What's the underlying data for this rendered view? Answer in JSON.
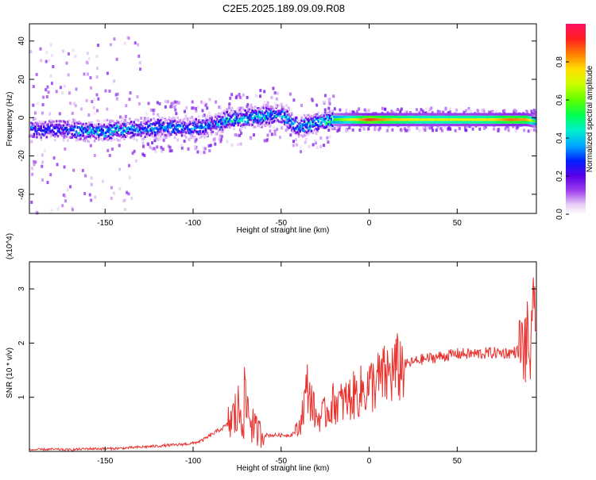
{
  "title": "C2E5.2025.189.09.09.R08",
  "chart_data": [
    {
      "type": "heatmap",
      "xlabel": "Height of straight line (km)",
      "ylabel": "Frequency (Hz)",
      "xlim": [
        -193,
        95
      ],
      "ylim": [
        -50,
        49
      ],
      "xticks": [
        -150,
        -100,
        -50,
        0,
        50
      ],
      "yticks": [
        -40,
        -20,
        0,
        20,
        40
      ],
      "colorbar": {
        "label": "Normalized spectral amplitude",
        "range": [
          0.0,
          1.0
        ],
        "ticks": [
          "0.0",
          "0.2",
          "0.4",
          "0.6",
          "0.8"
        ],
        "colormap": "rainbow (purple→blue→cyan→green→yellow→red)"
      },
      "ridge": {
        "x": [
          -190,
          -175,
          -160,
          -150,
          -140,
          -130,
          -120,
          -110,
          -100,
          -90,
          -80,
          -70,
          -60,
          -50,
          -40,
          -30,
          -20,
          -10,
          0,
          10,
          20,
          30,
          40,
          50,
          60,
          70,
          80,
          90,
          95
        ],
        "frequency": [
          -6,
          -6,
          -7,
          -7,
          -6,
          -6,
          -5,
          -5,
          -5,
          -4,
          -1,
          0,
          1,
          2,
          -5,
          -2,
          -1,
          -1,
          -1,
          -1,
          -1,
          -1,
          -1,
          -1,
          -1,
          -1,
          -1,
          -1,
          -2
        ],
        "amplitude": [
          0.3,
          0.3,
          0.4,
          0.45,
          0.4,
          0.35,
          0.4,
          0.35,
          0.35,
          0.35,
          0.45,
          0.4,
          0.45,
          0.4,
          0.4,
          0.45,
          0.55,
          0.7,
          0.9,
          0.8,
          0.75,
          0.7,
          0.7,
          0.72,
          0.72,
          0.75,
          0.85,
          0.8,
          0.5
        ]
      }
    },
    {
      "type": "line",
      "xlabel": "Height of straight line (km)",
      "ylabel": "SNR (10 * v/v)",
      "multiplier": "(x10^4)",
      "xlim": [
        -193,
        95
      ],
      "ylim": [
        0,
        3.5
      ],
      "xticks": [
        -150,
        -100,
        -50,
        0,
        50
      ],
      "yticks": [
        1,
        2,
        3
      ],
      "color": "#e8322e",
      "series": [
        {
          "x": [
            -193,
            -180,
            -170,
            -160,
            -150,
            -140,
            -130,
            -120,
            -110,
            -100,
            -95,
            -90,
            -85,
            -80,
            -75,
            -70,
            -65,
            -60,
            -55,
            -50,
            -45,
            -40,
            -35,
            -30,
            -25,
            -20,
            -15,
            -10,
            -5,
            0,
            5,
            10,
            15,
            20,
            25,
            30,
            40,
            50,
            60,
            70,
            80,
            85,
            88,
            90,
            92,
            94,
            95
          ],
          "y": [
            0.03,
            0.04,
            0.03,
            0.05,
            0.05,
            0.06,
            0.08,
            0.1,
            0.12,
            0.15,
            0.2,
            0.3,
            0.4,
            0.5,
            0.7,
            0.9,
            0.4,
            0.3,
            0.3,
            0.3,
            0.3,
            0.4,
            1.2,
            0.6,
            0.7,
            0.9,
            0.9,
            1.0,
            1.1,
            1.2,
            1.3,
            1.4,
            1.5,
            1.6,
            1.65,
            1.7,
            1.75,
            1.8,
            1.8,
            1.82,
            1.82,
            1.85,
            1.9,
            2.0,
            1.8,
            2.6,
            3.3
          ]
        }
      ]
    }
  ]
}
